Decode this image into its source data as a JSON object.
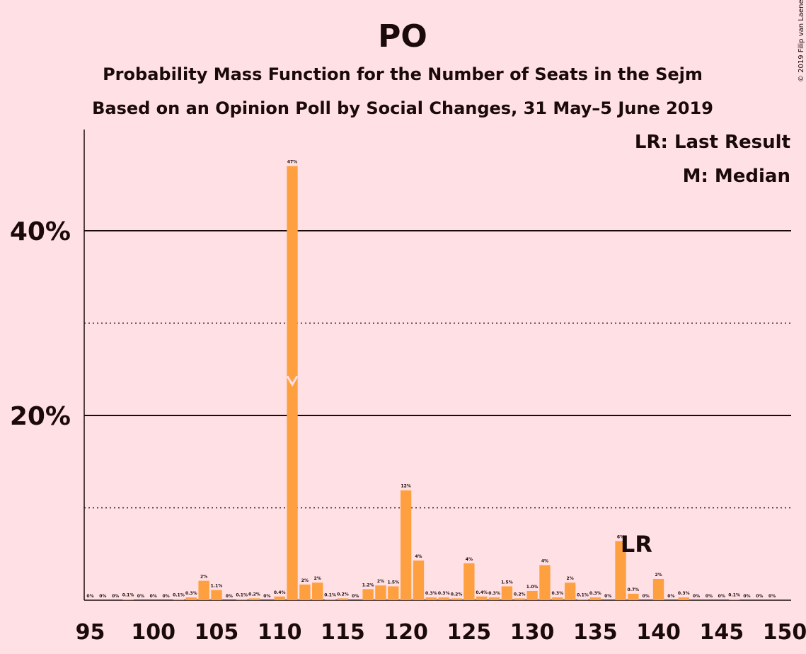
{
  "chart_data": {
    "type": "bar",
    "title": "PO",
    "subtitle": "Probability Mass Function for the Number of Seats in the Sejm",
    "subtitle2": "Based on an Opinion Poll by Social Changes, 31 May–5 June 2019",
    "copyright": "© 2019 Filip van Laenen",
    "legend": [
      "LR: Last Result",
      "M: Median"
    ],
    "xlim": [
      95,
      150
    ],
    "ylim": [
      0,
      50
    ],
    "x_ticks": [
      95,
      100,
      105,
      110,
      115,
      120,
      125,
      130,
      135,
      140,
      145,
      150
    ],
    "x_tick_labels": [
      "95",
      "100",
      "105",
      "110",
      "115",
      "120",
      "125",
      "130",
      "135",
      "140",
      "145",
      "150"
    ],
    "y_ticks_solid": [
      20,
      40
    ],
    "y_tick_labels": [
      "20%",
      "40%"
    ],
    "y_ticks_dotted": [
      10,
      30
    ],
    "median": 111,
    "last_result": 138,
    "last_result_label": "LR",
    "x": [
      95,
      96,
      97,
      98,
      99,
      100,
      101,
      102,
      103,
      104,
      105,
      106,
      107,
      108,
      109,
      110,
      111,
      112,
      113,
      114,
      115,
      116,
      117,
      118,
      119,
      120,
      121,
      122,
      123,
      124,
      125,
      126,
      127,
      128,
      129,
      130,
      131,
      132,
      133,
      134,
      135,
      136,
      137,
      138,
      139,
      140,
      141,
      142,
      143,
      144,
      145,
      146,
      147,
      148,
      149
    ],
    "values": [
      0,
      0,
      0,
      0.1,
      0,
      0,
      0,
      0.1,
      0.3,
      2.1,
      1.1,
      0,
      0.1,
      0.2,
      0,
      0.4,
      47,
      1.7,
      1.9,
      0.1,
      0.2,
      0,
      1.2,
      1.6,
      1.5,
      11.9,
      4.3,
      0.3,
      0.3,
      0.2,
      4.0,
      0.4,
      0.3,
      1.5,
      0.2,
      1.0,
      3.8,
      0.3,
      1.9,
      0.1,
      0.3,
      0,
      6.4,
      0.7,
      0,
      2.3,
      0,
      0.3,
      0,
      0,
      0,
      0.1,
      0,
      0,
      0
    ],
    "labels": [
      "0%",
      "0%",
      "0%",
      "0.1%",
      "0%",
      "0%",
      "0%",
      "0.1%",
      "0.3%",
      "2%",
      "1.1%",
      "0%",
      "0.1%",
      "0.2%",
      "0%",
      "0.4%",
      "47%",
      "2%",
      "2%",
      "0.1%",
      "0.2%",
      "0%",
      "1.2%",
      "2%",
      "1.5%",
      "12%",
      "4%",
      "0.3%",
      "0.3%",
      "0.2%",
      "4%",
      "0.4%",
      "0.3%",
      "1.5%",
      "0.2%",
      "1.0%",
      "4%",
      "0.3%",
      "2%",
      "0.1%",
      "0.3%",
      "0%",
      "6%",
      "0.7%",
      "0%",
      "2%",
      "0%",
      "0.3%",
      "0%",
      "0%",
      "0%",
      "0.1%",
      "0%",
      "0%",
      "0%"
    ],
    "colors": {
      "background": "#ffe0e5",
      "bar": "#ffa040",
      "median_marker": "#ffe0e5",
      "text": "#1a0a0a"
    }
  }
}
